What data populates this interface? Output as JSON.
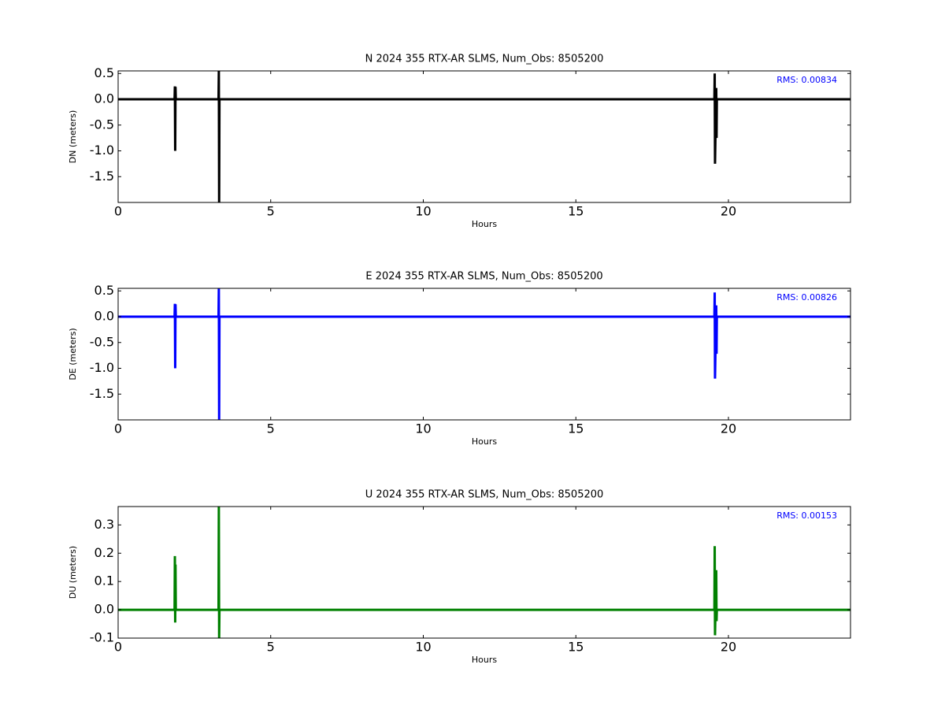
{
  "chart_data": [
    {
      "type": "line",
      "title": "N 2024 355 RTX-AR  SLMS, Num_Obs: 8505200",
      "x_label": "Hours",
      "y_label": "DN (meters)",
      "annotation": "RMS:  0.00834",
      "annotation_color": "#0000ff",
      "x": [
        0,
        1.85,
        1.86,
        1.87,
        1.88,
        1.89,
        3.29,
        3.3,
        3.31,
        3.32,
        19.54,
        19.55,
        19.56,
        19.6,
        19.61,
        19.62,
        24
      ],
      "series": [
        {
          "name": "DN",
          "color": "#000000",
          "values": [
            0,
            0,
            0.25,
            -1.0,
            0.24,
            0,
            0,
            0.55,
            -2.0,
            0,
            0,
            0.5,
            -1.25,
            0.22,
            -0.75,
            0,
            0
          ]
        }
      ],
      "xlim": [
        0,
        24
      ],
      "xticks": [
        0,
        5,
        10,
        15,
        20
      ],
      "ylim": [
        -2.0,
        0.55
      ],
      "yticks": [
        -1.5,
        {
          "value": -1,
          "label": "-1.0"
        },
        -0.5,
        {
          "value": 0,
          "label": "0.0"
        },
        0.5
      ],
      "grid": false
    },
    {
      "type": "line",
      "title": "E 2024 355 RTX-AR  SLMS, Num_Obs: 8505200",
      "x_label": "Hours",
      "y_label": "DE (meters)",
      "annotation": "RMS:  0.00826",
      "annotation_color": "#0000ff",
      "x": [
        0,
        1.85,
        1.86,
        1.87,
        1.88,
        1.89,
        3.29,
        3.3,
        3.31,
        3.32,
        19.54,
        19.55,
        19.56,
        19.6,
        19.61,
        19.62,
        24
      ],
      "series": [
        {
          "name": "DE",
          "color": "#0000ff",
          "values": [
            0,
            0,
            0.25,
            -1.0,
            0.24,
            0,
            0,
            0.55,
            -2.0,
            0,
            0,
            0.47,
            -1.2,
            0.22,
            -0.72,
            0,
            0
          ]
        }
      ],
      "xlim": [
        0,
        24
      ],
      "xticks": [
        0,
        5,
        10,
        15,
        20
      ],
      "ylim": [
        -2.0,
        0.55
      ],
      "yticks": [
        -1.5,
        {
          "value": -1,
          "label": "-1.0"
        },
        -0.5,
        {
          "value": 0,
          "label": "0.0"
        },
        0.5
      ],
      "grid": false
    },
    {
      "type": "line",
      "title": "U 2024 355 RTX-AR  SLMS, Num_Obs: 8505200",
      "x_label": "Hours",
      "y_label": "DU (meters)",
      "annotation": "RMS:  0.00153",
      "annotation_color": "#0000ff",
      "x": [
        0,
        1.85,
        1.86,
        1.87,
        1.88,
        1.89,
        3.29,
        3.3,
        3.31,
        3.32,
        19.54,
        19.55,
        19.56,
        19.6,
        19.61,
        19.62,
        24
      ],
      "series": [
        {
          "name": "DU",
          "color": "#008000",
          "values": [
            0,
            0,
            0.19,
            -0.045,
            0.16,
            0,
            0,
            0.365,
            -0.1,
            0,
            0,
            0.225,
            -0.09,
            0.14,
            -0.04,
            0,
            0
          ]
        }
      ],
      "xlim": [
        0,
        24
      ],
      "xticks": [
        0,
        5,
        10,
        15,
        20
      ],
      "ylim": [
        -0.1,
        0.365
      ],
      "yticks": [
        -0.1,
        {
          "value": 0,
          "label": "0.0"
        },
        0.1,
        0.2,
        0.3
      ],
      "grid": false
    }
  ]
}
